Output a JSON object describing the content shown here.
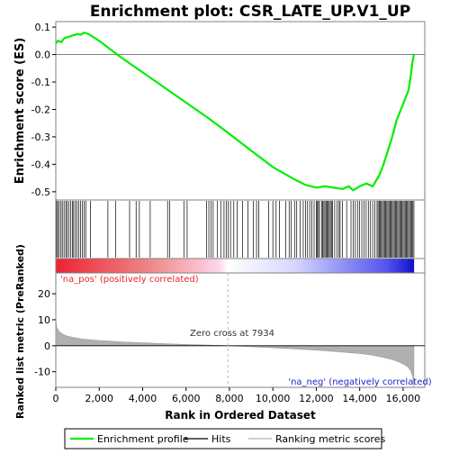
{
  "chart_data": {
    "type": "line",
    "title": "Enrichment plot: CSR_LATE_UP.V1_UP",
    "es_panel": {
      "ylabel": "Enrichment score (ES)",
      "ylim": [
        -0.53,
        0.12
      ],
      "yticks": [
        "0.1",
        "0.0",
        "-0.1",
        "-0.2",
        "-0.3",
        "-0.4",
        "-0.5"
      ],
      "ytick_values": [
        0.1,
        0.0,
        -0.1,
        -0.2,
        -0.3,
        -0.4,
        -0.5
      ],
      "grid": false,
      "series": [
        {
          "name": "Enrichment profile",
          "color": "#00ee00",
          "x": [
            0,
            100,
            250,
            400,
            600,
            800,
            1000,
            1150,
            1300,
            1500,
            2000,
            2500,
            3000,
            4000,
            5000,
            6000,
            7000,
            7934,
            9000,
            10000,
            11000,
            11500,
            12000,
            12400,
            12800,
            13200,
            13500,
            13700,
            14000,
            14300,
            14600,
            14900,
            15100,
            15300,
            15500,
            15700,
            15900,
            16100,
            16250,
            16350,
            16450,
            16500
          ],
          "y": [
            0.04,
            0.05,
            0.045,
            0.06,
            0.065,
            0.07,
            0.075,
            0.072,
            0.08,
            0.075,
            0.05,
            0.02,
            -0.01,
            -0.065,
            -0.12,
            -0.175,
            -0.23,
            -0.285,
            -0.35,
            -0.41,
            -0.455,
            -0.475,
            -0.485,
            -0.48,
            -0.485,
            -0.49,
            -0.48,
            -0.495,
            -0.48,
            -0.47,
            -0.48,
            -0.44,
            -0.4,
            -0.35,
            -0.3,
            -0.24,
            -0.2,
            -0.16,
            -0.13,
            -0.08,
            -0.02,
            0.0
          ]
        }
      ]
    },
    "hits": {
      "legend": "Hits",
      "color": "#000000",
      "positions": [
        40,
        90,
        160,
        240,
        300,
        380,
        460,
        520,
        600,
        680,
        760,
        820,
        900,
        980,
        1060,
        1140,
        1220,
        1300,
        1380,
        1600,
        2400,
        2750,
        3400,
        3700,
        3850,
        4350,
        5150,
        5250,
        5900,
        6050,
        6950,
        7050,
        7150,
        7250,
        7450,
        7600,
        7750,
        7850,
        7950,
        8050,
        8200,
        8350,
        8600,
        8850,
        9100,
        9250,
        9350,
        9800,
        10000,
        10150,
        10300,
        10600,
        10750,
        10850,
        11000,
        11100,
        11250,
        11400,
        11500,
        11600,
        11700,
        11800,
        11900,
        12000,
        12050,
        12100,
        12150,
        12250,
        12300,
        12350,
        12400,
        12450,
        12500,
        12550,
        12600,
        12650,
        12700,
        12750,
        12850,
        12950,
        13050,
        13100,
        13200,
        13400,
        13600,
        13700,
        13800,
        13900,
        14000,
        14100,
        14200,
        14300,
        14400,
        14500,
        14600,
        14700,
        14800,
        14850,
        14900,
        14950,
        15000,
        15050,
        15100,
        15150,
        15200,
        15250,
        15300,
        15350,
        15400,
        15450,
        15500,
        15550,
        15600,
        15650,
        15700,
        15750,
        15800,
        15850,
        15900,
        15950,
        16000,
        16050,
        16100,
        16150,
        16200,
        16250,
        16300,
        16350,
        16400,
        16450,
        16500
      ]
    },
    "rank_bar": {
      "pos_color": "#ee2233",
      "neg_color": "#2222ee",
      "zero_cross": 7934
    },
    "metric_panel": {
      "ylabel": "Ranked list metric (PreRanked)",
      "ylim": [
        -16,
        28
      ],
      "yticks": [
        "20",
        "10",
        "0",
        "-10"
      ],
      "ytick_values": [
        20,
        10,
        0,
        -10
      ],
      "fill_color": "#b0b0b0",
      "x": [
        0,
        50,
        150,
        300,
        500,
        800,
        1200,
        2000,
        3000,
        4000,
        5000,
        6000,
        7000,
        7934,
        9000,
        10000,
        11000,
        12000,
        13000,
        14000,
        14500,
        15000,
        15500,
        15800,
        16000,
        16200,
        16350,
        16450,
        16500
      ],
      "y": [
        10.5,
        7.0,
        5.5,
        4.5,
        3.8,
        3.2,
        2.6,
        2.0,
        1.5,
        1.1,
        0.8,
        0.5,
        0.25,
        0.0,
        -0.4,
        -0.8,
        -1.2,
        -1.7,
        -2.3,
        -3.0,
        -3.5,
        -4.3,
        -5.3,
        -6.2,
        -7.0,
        -8.0,
        -9.5,
        -12.0,
        -16.0
      ],
      "pos_label": "'na_pos' (positively correlated)",
      "neg_label": "'na_neg' (negatively correlated)",
      "zero_cross_label": "Zero cross at 7934"
    },
    "x_axis": {
      "label": "Rank in Ordered Dataset",
      "xlim": [
        0,
        17000
      ],
      "ticks": [
        "0",
        "2,000",
        "4,000",
        "6,000",
        "8,000",
        "10,000",
        "12,000",
        "14,000",
        "16,000"
      ],
      "tick_values": [
        0,
        2000,
        4000,
        6000,
        8000,
        10000,
        12000,
        14000,
        16000
      ]
    },
    "legend": {
      "placement": "bottom",
      "items": [
        {
          "label": "Enrichment profile",
          "color": "#00ee00",
          "kind": "green-line"
        },
        {
          "label": "Hits",
          "color": "#000000",
          "kind": "black-line"
        },
        {
          "label": "Ranking metric scores",
          "color": "#c0c0c0",
          "kind": "grey-line"
        }
      ]
    }
  }
}
